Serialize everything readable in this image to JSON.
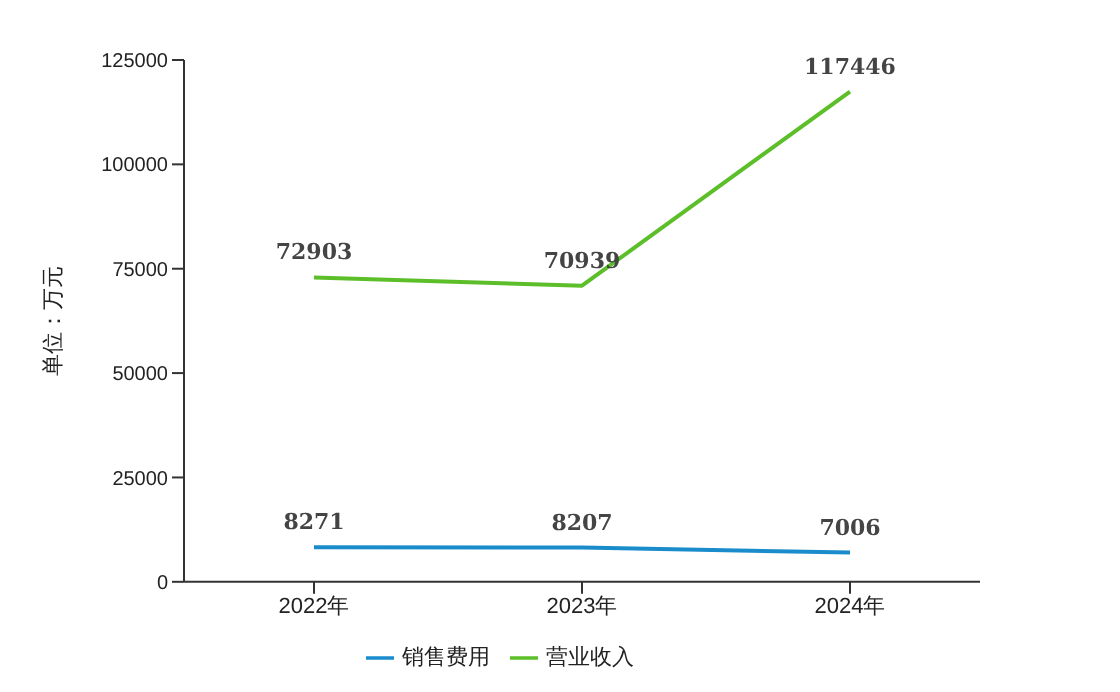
{
  "chart_data": {
    "type": "line",
    "ylabel": "单位：万元",
    "categories": [
      "2022年",
      "2023年",
      "2024年"
    ],
    "series": [
      {
        "name": "销售费用",
        "color": "#1a8ccc",
        "values": [
          8271,
          8207,
          7006
        ]
      },
      {
        "name": "营业收入",
        "color": "#5cbf2a",
        "values": [
          72903,
          70939,
          117446
        ]
      }
    ],
    "ylim": [
      0,
      125000
    ],
    "yticks": [
      0,
      25000,
      50000,
      75000,
      100000,
      125000
    ],
    "data_labels": true,
    "legend": "bottom",
    "marker": "none",
    "line_style": "solid"
  }
}
